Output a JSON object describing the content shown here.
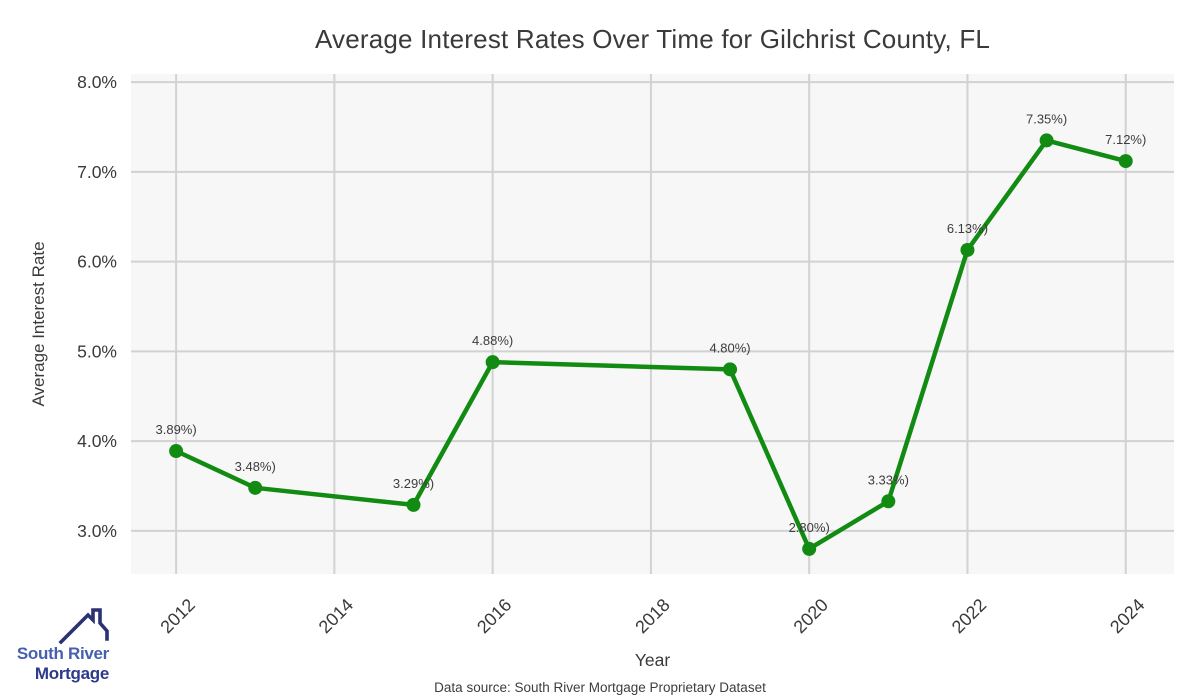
{
  "footer": {
    "source": "Data source: South River Mortgage Proprietary Dataset"
  },
  "logo": {
    "line1": "South River",
    "line2": "Mortgage",
    "icon": "house-roof-icon",
    "line1_color": "#4760ae",
    "line2_color": "#2d3a8c",
    "roof_color": "#2b3273"
  },
  "chart_data": {
    "type": "line",
    "title": "Average Interest Rates Over Time for Gilchrist County, FL",
    "xlabel": "Year",
    "ylabel": "Average Interest Rate",
    "x": [
      2012,
      2013,
      2015,
      2016,
      2019,
      2020,
      2021,
      2022,
      2023,
      2024
    ],
    "y": [
      3.89,
      3.48,
      3.29,
      4.88,
      4.8,
      2.8,
      3.33,
      6.13,
      7.35,
      7.12
    ],
    "point_labels": [
      "3.89%)",
      "3.48%)",
      "3.29%)",
      "4.88%)",
      "4.80%)",
      "2.80%)",
      "3.33%)",
      "6.13%)",
      "7.35%)",
      "7.12%)"
    ],
    "x_tick_values": [
      2012,
      2014,
      2016,
      2018,
      2020,
      2022,
      2024
    ],
    "x_tick_labels": [
      "2012",
      "2014",
      "2016",
      "2018",
      "2020",
      "2022",
      "2024"
    ],
    "y_tick_values": [
      3,
      4,
      5,
      6,
      7,
      8
    ],
    "y_tick_labels": [
      "3.0%",
      "4.0%",
      "5.0%",
      "6.0%",
      "7.0%",
      "8.0%"
    ],
    "xlim": [
      2011.43,
      2024.61
    ],
    "ylim": [
      2.52,
      8.09
    ],
    "grid": true,
    "legend": "none",
    "line_color": "#128b12",
    "marker": "circle",
    "marker_color": "#128b12",
    "plot_bg_color": "#f7f7f7",
    "grid_color": "#d2d2d2",
    "tick_color": "#3a3a3a",
    "point_label_color": "#3d3d3d"
  }
}
